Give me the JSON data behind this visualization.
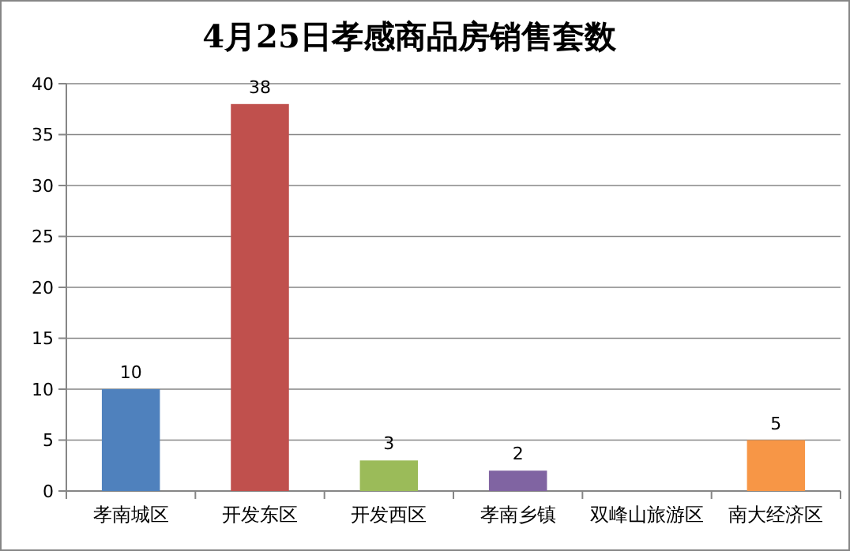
{
  "chart_data": {
    "type": "bar",
    "title": "4月25日孝感商品房销售套数",
    "categories": [
      "孝南城区",
      "开发东区",
      "开发西区",
      "孝南乡镇",
      "双峰山旅游区",
      "南大经济区"
    ],
    "values": [
      10,
      38,
      3,
      2,
      0,
      5
    ],
    "colors": [
      "#4f81bd",
      "#c0504d",
      "#9bbb59",
      "#8064a2",
      "#4bacc6",
      "#f79646"
    ],
    "value_labels": [
      "10",
      "38",
      "3",
      "2",
      null,
      "5"
    ],
    "ylim": [
      0,
      40
    ],
    "yticks": [
      0,
      5,
      10,
      15,
      20,
      25,
      30,
      35,
      40
    ],
    "grid": "y"
  }
}
